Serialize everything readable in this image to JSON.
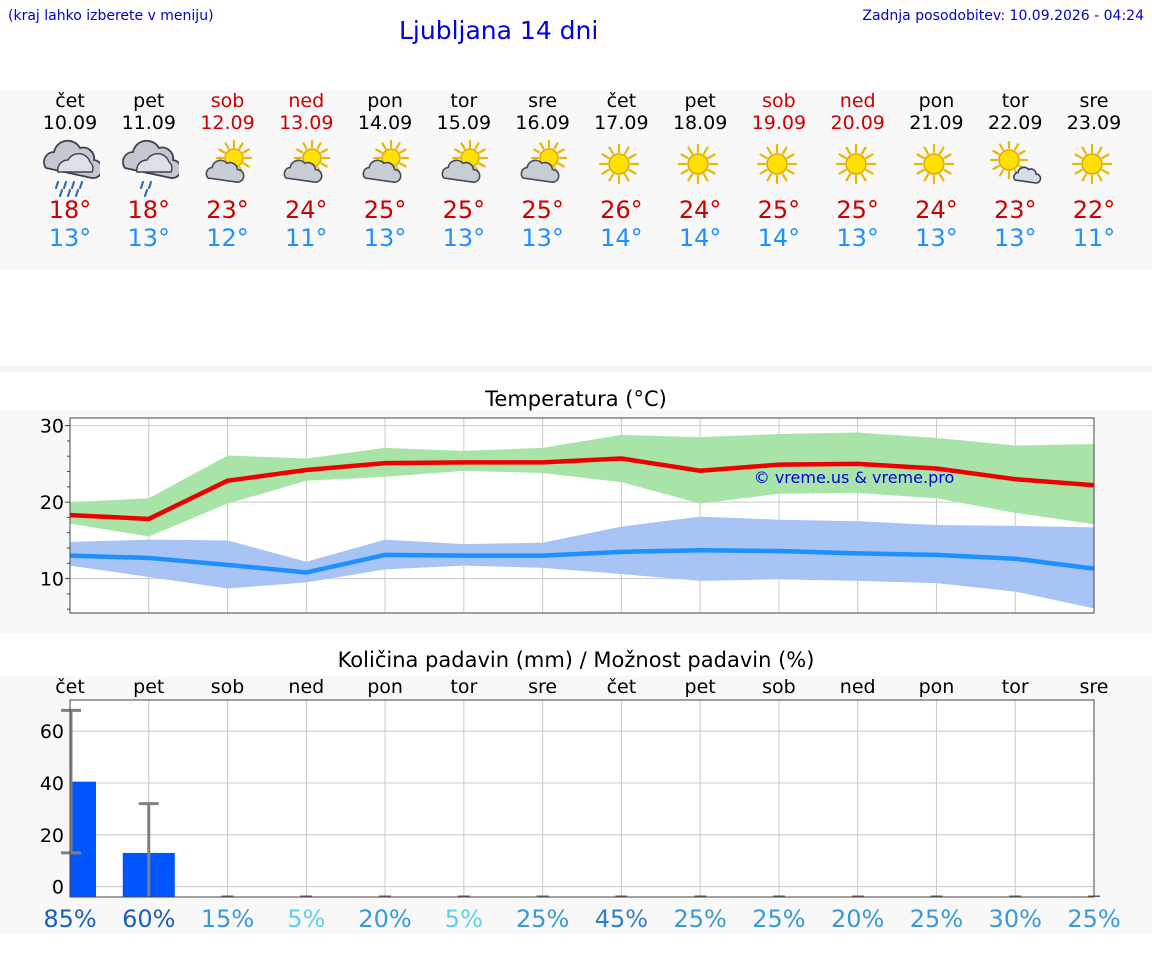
{
  "header": {
    "left_note": "(kraj lahko izberete v meniju)",
    "title": "Ljubljana 14 dni",
    "updated": "Zadnja posodobitev: 10.09.2026 - 04:24"
  },
  "days": [
    {
      "name": "čet",
      "date": "10.09",
      "icon": "rain-cloud-icon",
      "hi": "18°",
      "lo": "13°",
      "weekend": false
    },
    {
      "name": "pet",
      "date": "11.09",
      "icon": "light-rain-cloud-icon",
      "hi": "18°",
      "lo": "13°",
      "weekend": false
    },
    {
      "name": "sob",
      "date": "12.09",
      "icon": "sun-behind-cloud-icon",
      "hi": "23°",
      "lo": "12°",
      "weekend": true
    },
    {
      "name": "ned",
      "date": "13.09",
      "icon": "sun-behind-cloud-icon",
      "hi": "24°",
      "lo": "11°",
      "weekend": true
    },
    {
      "name": "pon",
      "date": "14.09",
      "icon": "sun-behind-cloud-icon",
      "hi": "25°",
      "lo": "13°",
      "weekend": false
    },
    {
      "name": "tor",
      "date": "15.09",
      "icon": "sun-behind-cloud-icon",
      "hi": "25°",
      "lo": "13°",
      "weekend": false
    },
    {
      "name": "sre",
      "date": "16.09",
      "icon": "sun-behind-cloud-icon",
      "hi": "25°",
      "lo": "13°",
      "weekend": false
    },
    {
      "name": "čet",
      "date": "17.09",
      "icon": "sun-icon",
      "hi": "26°",
      "lo": "14°",
      "weekend": false
    },
    {
      "name": "pet",
      "date": "18.09",
      "icon": "sun-icon",
      "hi": "24°",
      "lo": "14°",
      "weekend": false
    },
    {
      "name": "sob",
      "date": "19.09",
      "icon": "sun-icon",
      "hi": "25°",
      "lo": "14°",
      "weekend": true
    },
    {
      "name": "ned",
      "date": "20.09",
      "icon": "sun-icon",
      "hi": "25°",
      "lo": "13°",
      "weekend": true
    },
    {
      "name": "pon",
      "date": "21.09",
      "icon": "sun-icon",
      "hi": "24°",
      "lo": "13°",
      "weekend": false
    },
    {
      "name": "tor",
      "date": "22.09",
      "icon": "sun-small-cloud-icon",
      "hi": "23°",
      "lo": "13°",
      "weekend": false
    },
    {
      "name": "sre",
      "date": "23.09",
      "icon": "sun-icon",
      "hi": "22°",
      "lo": "11°",
      "weekend": false
    }
  ],
  "colors": {
    "weekend": "#cc0000",
    "weekday": "#000000",
    "hi": "#cc0000",
    "lo": "#1e90ff",
    "hi_line": "#ee0000",
    "hi_band": "#a8e4a8",
    "lo_line": "#1e90ff",
    "lo_band": "#a8c4f4",
    "bar": "#0055ff",
    "whisker": "#808080",
    "watermark": "#0000dd"
  },
  "chart_data": [
    {
      "type": "line",
      "title": "Temperatura (°C)",
      "watermark": "© vreme.us & vreme.pro",
      "ylim": [
        5.5,
        31
      ],
      "yticks": [
        10,
        20,
        30
      ],
      "series": [
        {
          "role": "max",
          "values": [
            18.3,
            17.8,
            22.8,
            24.2,
            25.1,
            25.2,
            25.2,
            25.7,
            24.1,
            24.9,
            25.0,
            24.4,
            23.0,
            22.2
          ],
          "band_upper": [
            20.0,
            20.5,
            26.1,
            25.7,
            27.1,
            26.7,
            27.1,
            28.8,
            28.5,
            28.9,
            29.1,
            28.4,
            27.4,
            27.6
          ],
          "band_lower": [
            17.2,
            15.5,
            19.8,
            22.8,
            23.3,
            24.1,
            23.8,
            22.6,
            19.8,
            21.1,
            21.2,
            20.5,
            18.6,
            17.1
          ]
        },
        {
          "role": "min",
          "values": [
            13.0,
            12.7,
            11.8,
            10.8,
            13.1,
            13.0,
            13.0,
            13.5,
            13.7,
            13.6,
            13.3,
            13.1,
            12.6,
            11.3
          ],
          "band_upper": [
            14.8,
            15.1,
            15.0,
            12.2,
            15.1,
            14.5,
            14.7,
            16.8,
            18.1,
            17.7,
            17.5,
            17.0,
            16.9,
            16.7
          ],
          "band_lower": [
            11.7,
            10.2,
            8.7,
            9.5,
            11.2,
            11.7,
            11.4,
            10.6,
            9.7,
            9.9,
            9.7,
            9.4,
            8.3,
            6.1
          ]
        }
      ]
    },
    {
      "type": "bar",
      "title": "Količina padavin (mm) / Možnost padavin (%)",
      "categories": [
        "čet",
        "pet",
        "sob",
        "ned",
        "pon",
        "tor",
        "sre",
        "čet",
        "pet",
        "sob",
        "ned",
        "pon",
        "tor",
        "sre"
      ],
      "ylim": [
        -4,
        72
      ],
      "yticks": [
        0,
        20,
        40,
        60
      ],
      "values": [
        40.5,
        13,
        0,
        0,
        0,
        0,
        0,
        0,
        0,
        0,
        0,
        0,
        0,
        0
      ],
      "whisker_high": [
        68,
        32,
        0,
        0,
        0,
        0,
        0,
        0,
        0,
        0,
        0,
        0,
        0,
        0
      ],
      "whisker_low": [
        13,
        0,
        0,
        0,
        0,
        0,
        0,
        0,
        0,
        0,
        0,
        0,
        0,
        0
      ],
      "probability": [
        "85%",
        "60%",
        "15%",
        "5%",
        "20%",
        "5%",
        "25%",
        "45%",
        "25%",
        "25%",
        "20%",
        "25%",
        "30%",
        "25%"
      ],
      "probability_colors": [
        "#1e5fb4",
        "#1e5fb4",
        "#3a9ad9",
        "#5fd0e8",
        "#3a9ad9",
        "#5fd0e8",
        "#3a9ad9",
        "#2f7fc8",
        "#3a9ad9",
        "#3a9ad9",
        "#3a9ad9",
        "#3a9ad9",
        "#3a9ad9",
        "#3a9ad9"
      ]
    }
  ]
}
